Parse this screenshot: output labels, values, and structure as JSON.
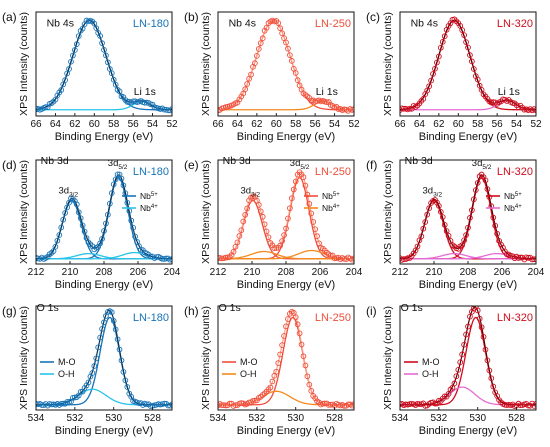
{
  "figure": {
    "x_axis_label": "Binding Energy (eV)",
    "y_axis_label": "XPS Intensity (counts)"
  },
  "colors": {
    "LN-180": {
      "main": "#1874b8",
      "light": "#29c3ea",
      "fit": "#0b2f4a"
    },
    "LN-250": {
      "main": "#f04e3a",
      "light": "#f48a1e",
      "fit": "#f9a38a"
    },
    "LN-320": {
      "main": "#cf0d1d",
      "light": "#e56bd6",
      "fit": "#5b0008"
    }
  },
  "chart_data": [
    {
      "panel": "(a)",
      "sample": "LN-180",
      "scheme": "LN-180",
      "region": "Nb 4s / Li 1s",
      "type": "line",
      "xlim": [
        66,
        52
      ],
      "xticks": [
        66,
        64,
        62,
        60,
        58,
        56,
        54,
        52
      ],
      "labels": [
        {
          "text": "Nb 4s",
          "x": 63.5,
          "y": 0.86
        },
        {
          "text": "Li 1s",
          "x": 54.8,
          "y": 0.2
        }
      ],
      "legend": [],
      "components": [
        {
          "name": "",
          "center": 60.5,
          "width": 1.7,
          "amp": 0.86,
          "role": "main"
        },
        {
          "name": "",
          "center": 55.1,
          "width": 0.9,
          "amp": 0.08,
          "role": "light"
        }
      ],
      "baseline": 0.06
    },
    {
      "panel": "(b)",
      "sample": "LN-250",
      "scheme": "LN-250",
      "region": "Nb 4s / Li 1s",
      "type": "line",
      "xlim": [
        66,
        52
      ],
      "xticks": [
        66,
        64,
        62,
        60,
        58,
        56,
        54,
        52
      ],
      "labels": [
        {
          "text": "Nb 4s",
          "x": 63.5,
          "y": 0.86
        },
        {
          "text": "Li 1s",
          "x": 54.8,
          "y": 0.2
        }
      ],
      "legend": [],
      "components": [
        {
          "name": "",
          "center": 60.3,
          "width": 1.7,
          "amp": 0.86,
          "role": "main"
        },
        {
          "name": "",
          "center": 55.2,
          "width": 0.9,
          "amp": 0.08,
          "role": "light"
        }
      ],
      "baseline": 0.06
    },
    {
      "panel": "(c)",
      "sample": "LN-320",
      "scheme": "LN-320",
      "region": "Nb 4s / Li 1s",
      "type": "line",
      "xlim": [
        66,
        52
      ],
      "xticks": [
        66,
        64,
        62,
        60,
        58,
        56,
        54,
        52
      ],
      "labels": [
        {
          "text": "Nb 4s",
          "x": 63.5,
          "y": 0.86
        },
        {
          "text": "Li 1s",
          "x": 54.8,
          "y": 0.2
        }
      ],
      "legend": [],
      "components": [
        {
          "name": "",
          "center": 60.4,
          "width": 1.6,
          "amp": 0.86,
          "role": "main"
        },
        {
          "name": "",
          "center": 55.0,
          "width": 0.9,
          "amp": 0.09,
          "role": "light"
        }
      ],
      "baseline": 0.06
    },
    {
      "panel": "(d)",
      "sample": "LN-180",
      "scheme": "LN-180",
      "region": "Nb 3d",
      "type": "line",
      "xlim": [
        212,
        204
      ],
      "xticks": [
        212,
        210,
        208,
        206,
        204
      ],
      "labels": [
        {
          "text": "Nb 3d",
          "x": 210.9,
          "y": 0.96
        },
        {
          "text": "3d3/2",
          "x": 210.1,
          "y": 0.68
        },
        {
          "text": "3d5/2",
          "x": 207.2,
          "y": 0.94
        }
      ],
      "legend": [
        {
          "label": "Nb5+",
          "role": "main"
        },
        {
          "label": "Nb4+",
          "role": "light"
        }
      ],
      "components": [
        {
          "name": "Nb5+",
          "center": 209.9,
          "width": 0.55,
          "amp": 0.56,
          "role": "main"
        },
        {
          "name": "Nb5+",
          "center": 207.15,
          "width": 0.55,
          "amp": 0.78,
          "role": "main"
        },
        {
          "name": "Nb4+",
          "center": 208.9,
          "width": 0.7,
          "amp": 0.05,
          "role": "light"
        },
        {
          "name": "Nb4+",
          "center": 206.2,
          "width": 0.7,
          "amp": 0.06,
          "role": "light"
        }
      ],
      "baseline": 0.05
    },
    {
      "panel": "(e)",
      "sample": "LN-250",
      "scheme": "LN-250",
      "region": "Nb 3d",
      "type": "line",
      "xlim": [
        212,
        204
      ],
      "xticks": [
        212,
        210,
        208,
        206,
        204
      ],
      "labels": [
        {
          "text": "Nb 3d",
          "x": 210.9,
          "y": 0.96
        },
        {
          "text": "3d3/2",
          "x": 210.1,
          "y": 0.68
        },
        {
          "text": "3d5/2",
          "x": 207.2,
          "y": 0.94
        }
      ],
      "legend": [
        {
          "label": "Nb5+",
          "role": "main"
        },
        {
          "label": "Nb4+",
          "role": "light"
        }
      ],
      "components": [
        {
          "name": "Nb5+",
          "center": 209.95,
          "width": 0.55,
          "amp": 0.56,
          "role": "main"
        },
        {
          "name": "Nb5+",
          "center": 207.2,
          "width": 0.55,
          "amp": 0.78,
          "role": "main"
        },
        {
          "name": "Nb4+",
          "center": 209.3,
          "width": 0.75,
          "amp": 0.07,
          "role": "light"
        },
        {
          "name": "Nb4+",
          "center": 206.5,
          "width": 0.75,
          "amp": 0.08,
          "role": "light"
        }
      ],
      "baseline": 0.05
    },
    {
      "panel": "(f)",
      "sample": "LN-320",
      "scheme": "LN-320",
      "region": "Nb 3d",
      "type": "line",
      "xlim": [
        212,
        204
      ],
      "xticks": [
        212,
        210,
        208,
        206,
        204
      ],
      "labels": [
        {
          "text": "Nb 3d",
          "x": 210.9,
          "y": 0.96
        },
        {
          "text": "3d3/2",
          "x": 210.1,
          "y": 0.68
        },
        {
          "text": "3d5/2",
          "x": 207.2,
          "y": 0.94
        }
      ],
      "legend": [
        {
          "label": "Nb5+",
          "role": "main"
        },
        {
          "label": "Nb4+",
          "role": "light"
        }
      ],
      "components": [
        {
          "name": "Nb5+",
          "center": 210.0,
          "width": 0.55,
          "amp": 0.56,
          "role": "main"
        },
        {
          "name": "Nb5+",
          "center": 207.2,
          "width": 0.55,
          "amp": 0.78,
          "role": "main"
        },
        {
          "name": "Nb4+",
          "center": 208.8,
          "width": 0.7,
          "amp": 0.05,
          "role": "light"
        },
        {
          "name": "Nb4+",
          "center": 206.3,
          "width": 0.7,
          "amp": 0.05,
          "role": "light"
        }
      ],
      "baseline": 0.05
    },
    {
      "panel": "(g)",
      "sample": "LN-180",
      "scheme": "LN-180",
      "region": "O 1s",
      "type": "line",
      "xlim": [
        534,
        527
      ],
      "xticks": [
        534,
        532,
        530,
        528
      ],
      "labels": [
        {
          "text": "O 1s",
          "x": 533.4,
          "y": 0.95
        }
      ],
      "legend": [
        {
          "label": "M-O",
          "role": "main"
        },
        {
          "label": "O-H",
          "role": "light"
        }
      ],
      "components": [
        {
          "name": "M-O",
          "center": 530.2,
          "width": 0.5,
          "amp": 0.84,
          "role": "main"
        },
        {
          "name": "O-H",
          "center": 531.1,
          "width": 0.7,
          "amp": 0.15,
          "role": "light"
        }
      ],
      "baseline": 0.05
    },
    {
      "panel": "(h)",
      "sample": "LN-250",
      "scheme": "LN-250",
      "region": "O 1s",
      "type": "line",
      "xlim": [
        534,
        527
      ],
      "xticks": [
        534,
        532,
        530,
        528
      ],
      "labels": [
        {
          "text": "O 1s",
          "x": 533.4,
          "y": 0.95
        }
      ],
      "legend": [
        {
          "label": "M-O",
          "role": "main"
        },
        {
          "label": "O-H",
          "role": "light"
        }
      ],
      "components": [
        {
          "name": "M-O",
          "center": 530.15,
          "width": 0.5,
          "amp": 0.84,
          "role": "main"
        },
        {
          "name": "O-H",
          "center": 531.0,
          "width": 0.7,
          "amp": 0.13,
          "role": "light"
        }
      ],
      "baseline": 0.05
    },
    {
      "panel": "(i)",
      "sample": "LN-320",
      "scheme": "LN-320",
      "region": "O 1s",
      "type": "line",
      "xlim": [
        534,
        527
      ],
      "xticks": [
        534,
        532,
        530,
        528
      ],
      "labels": [
        {
          "text": "O 1s",
          "x": 533.4,
          "y": 0.95
        }
      ],
      "legend": [
        {
          "label": "M-O",
          "role": "main"
        },
        {
          "label": "O-H",
          "role": "light"
        }
      ],
      "components": [
        {
          "name": "M-O",
          "center": 530.1,
          "width": 0.5,
          "amp": 0.84,
          "role": "main"
        },
        {
          "name": "O-H",
          "center": 530.8,
          "width": 0.65,
          "amp": 0.17,
          "role": "light"
        }
      ],
      "baseline": 0.05
    }
  ]
}
